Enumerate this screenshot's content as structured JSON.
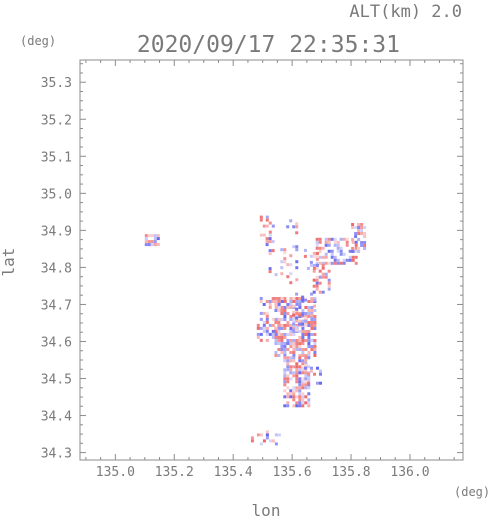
{
  "header": {
    "altitude_label": "ALT(km) 2.0",
    "timestamp": "2020/09/17 22:35:31"
  },
  "axes": {
    "y_unit": "(deg)",
    "x_unit": "(deg)",
    "y_label": "lat",
    "x_label": "lon",
    "xlim": [
      134.88,
      136.18
    ],
    "ylim": [
      34.28,
      35.36
    ],
    "x_ticks": [
      {
        "value": 135.0,
        "label": "135.0"
      },
      {
        "value": 135.2,
        "label": "135.2"
      },
      {
        "value": 135.4,
        "label": "135.4"
      },
      {
        "value": 135.6,
        "label": "135.6"
      },
      {
        "value": 135.8,
        "label": "135.8"
      },
      {
        "value": 136.0,
        "label": "136.0"
      }
    ],
    "y_ticks": [
      {
        "value": 34.3,
        "label": "34.3"
      },
      {
        "value": 34.4,
        "label": "34.4"
      },
      {
        "value": 34.5,
        "label": "34.5"
      },
      {
        "value": 34.6,
        "label": "34.6"
      },
      {
        "value": 34.7,
        "label": "34.7"
      },
      {
        "value": 34.8,
        "label": "34.8"
      },
      {
        "value": 34.9,
        "label": "34.9"
      },
      {
        "value": 35.0,
        "label": "35.0"
      },
      {
        "value": 35.1,
        "label": "35.1"
      },
      {
        "value": 35.2,
        "label": "35.2"
      },
      {
        "value": 35.3,
        "label": "35.3"
      }
    ],
    "minor_ticks_per_major": 4
  },
  "colors": {
    "frame": "#8c8c8c",
    "text": "#7a7a7a",
    "approaching": "#6666ee",
    "receding": "#ee6666"
  },
  "chart_data": {
    "type": "heatmap",
    "description_visible": false,
    "echo_regions": [
      {
        "lon": [
          135.54,
          135.68
        ],
        "lat": [
          34.56,
          34.72
        ],
        "density": 0.75
      },
      {
        "lon": [
          135.57,
          135.66
        ],
        "lat": [
          34.43,
          34.56
        ],
        "density": 0.7
      },
      {
        "lon": [
          135.48,
          135.56
        ],
        "lat": [
          34.6,
          34.68
        ],
        "density": 0.5
      },
      {
        "lon": [
          135.49,
          135.58
        ],
        "lat": [
          34.69,
          34.72
        ],
        "density": 0.5
      },
      {
        "lon": [
          135.68,
          135.82
        ],
        "lat": [
          34.81,
          34.88
        ],
        "density": 0.5
      },
      {
        "lon": [
          135.79,
          135.85
        ],
        "lat": [
          34.84,
          34.92
        ],
        "density": 0.55
      },
      {
        "lon": [
          135.67,
          135.73
        ],
        "lat": [
          34.73,
          34.81
        ],
        "density": 0.45
      },
      {
        "lon": [
          135.64,
          135.69
        ],
        "lat": [
          34.8,
          34.85
        ],
        "density": 0.4
      },
      {
        "lon": [
          135.48,
          135.54
        ],
        "lat": [
          34.89,
          34.94
        ],
        "density": 0.4
      },
      {
        "lon": [
          135.51,
          135.55
        ],
        "lat": [
          34.78,
          34.89
        ],
        "density": 0.25
      },
      {
        "lon": [
          135.56,
          135.62
        ],
        "lat": [
          34.76,
          34.86
        ],
        "density": 0.2
      },
      {
        "lon": [
          135.58,
          135.62
        ],
        "lat": [
          34.89,
          34.93
        ],
        "density": 0.3
      },
      {
        "lon": [
          135.1,
          135.15
        ],
        "lat": [
          34.86,
          34.89
        ],
        "density": 0.8
      },
      {
        "lon": [
          135.46,
          135.56
        ],
        "lat": [
          34.32,
          34.36
        ],
        "density": 0.3
      },
      {
        "lon": [
          135.63,
          135.7
        ],
        "lat": [
          34.49,
          34.54
        ],
        "density": 0.3
      },
      {
        "lon": [
          135.6,
          135.68
        ],
        "lat": [
          34.63,
          34.74
        ],
        "density": 0.35
      }
    ]
  }
}
